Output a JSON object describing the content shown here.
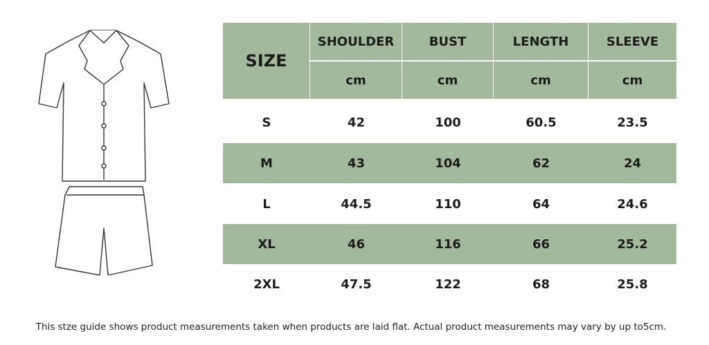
{
  "table": {
    "corner": "SIZE",
    "columns": [
      {
        "name": "SHOULDER",
        "unit": "cm"
      },
      {
        "name": "BUST",
        "unit": "cm"
      },
      {
        "name": "LENGTH",
        "unit": "cm"
      },
      {
        "name": "SLEEVE",
        "unit": "cm"
      }
    ],
    "rows": [
      [
        "S",
        "42",
        "100",
        "60.5",
        "23.5"
      ],
      [
        "M",
        "43",
        "104",
        "62",
        "24"
      ],
      [
        "L",
        "44.5",
        "110",
        "64",
        "24.6"
      ],
      [
        "XL",
        "46",
        "116",
        "66",
        "25.2"
      ],
      [
        "2XL",
        "47.5",
        "122",
        "68",
        "25.8"
      ]
    ]
  },
  "footer": {
    "note": "This stze guide shows product measurements taken when products are laid flat. Actual product measurements may vary by up to5cm."
  }
}
